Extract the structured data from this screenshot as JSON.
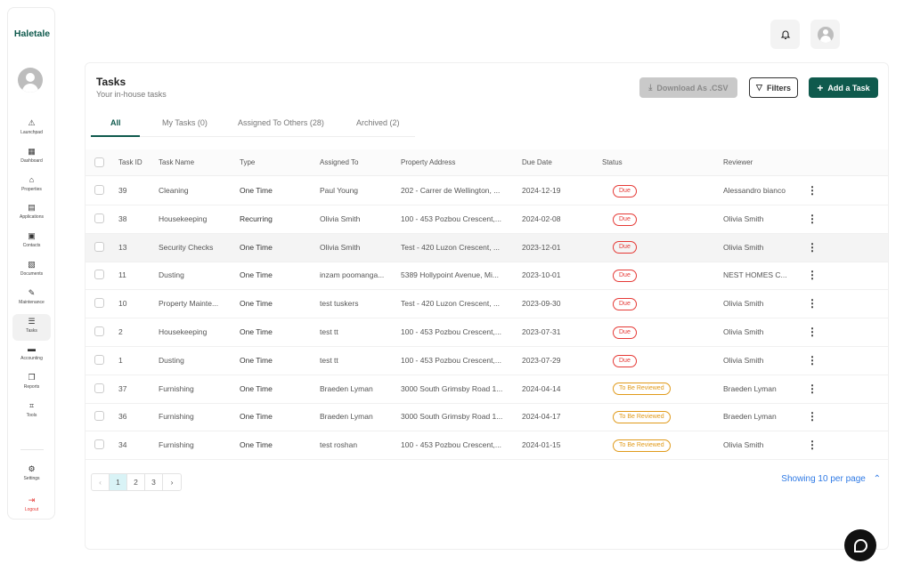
{
  "brand": {
    "name": "Haletale",
    "accent": "#0f5a4d"
  },
  "sidebar": {
    "items": [
      {
        "label": "Launchpad",
        "icon": "launchpad-icon",
        "glyph": "⚠"
      },
      {
        "label": "Dashboard",
        "icon": "dashboard-icon",
        "glyph": "▦"
      },
      {
        "label": "Properties",
        "icon": "home-icon",
        "glyph": "⌂"
      },
      {
        "label": "Applications",
        "icon": "clipboard-icon",
        "glyph": "▤"
      },
      {
        "label": "Contacts",
        "icon": "contacts-icon",
        "glyph": "▣"
      },
      {
        "label": "Documents",
        "icon": "document-icon",
        "glyph": "▧"
      },
      {
        "label": "Maintenance",
        "icon": "wrench-icon",
        "glyph": "✎"
      },
      {
        "label": "Tasks",
        "icon": "tasks-icon",
        "glyph": "☰",
        "active": true
      },
      {
        "label": "Accounting",
        "icon": "accounting-icon",
        "glyph": "▬"
      },
      {
        "label": "Reports",
        "icon": "reports-icon",
        "glyph": "❐"
      },
      {
        "label": "Tools",
        "icon": "tools-icon",
        "glyph": "⌗"
      }
    ],
    "settings": {
      "label": "Settings",
      "glyph": "⚙"
    },
    "logout": {
      "label": "Logout",
      "glyph": "⇥"
    }
  },
  "header": {
    "title": "Tasks",
    "subtitle": "Your in-house tasks",
    "download_label": "Download As .CSV",
    "filters_label": "Filters",
    "add_label": "Add a Task"
  },
  "tabs": [
    {
      "label": "All",
      "active": true
    },
    {
      "label": "My Tasks (0)"
    },
    {
      "label": "Assigned To Others (28)"
    },
    {
      "label": "Archived (2)"
    }
  ],
  "table": {
    "columns": [
      "Task ID",
      "Task Name",
      "Type",
      "Assigned To",
      "Property Address",
      "Due Date",
      "Status",
      "Reviewer"
    ],
    "rows": [
      [
        "39",
        "Cleaning",
        "One Time",
        "Paul Young",
        "202 - Carrer de Wellington, ...",
        "2024-12-19",
        "Due",
        "Alessandro bianco"
      ],
      [
        "38",
        "Housekeeping",
        "Recurring",
        "Olivia Smith",
        "100 - 453 Pozbou Crescent,...",
        "2024-02-08",
        "Due",
        "Olivia Smith"
      ],
      [
        "13",
        "Security Checks",
        "One Time",
        "Olivia Smith",
        "Test - 420 Luzon Crescent, ...",
        "2023-12-01",
        "Due",
        "Olivia Smith"
      ],
      [
        "11",
        "Dusting",
        "One Time",
        "inzam poomanga...",
        "5389 Hollypoint Avenue, Mi...",
        "2023-10-01",
        "Due",
        "NEST HOMES C..."
      ],
      [
        "10",
        "Property Mainte...",
        "One Time",
        "test tuskers",
        "Test - 420 Luzon Crescent, ...",
        "2023-09-30",
        "Due",
        "Olivia Smith"
      ],
      [
        "2",
        "Housekeeping",
        "One Time",
        "test tt",
        "100 - 453 Pozbou Crescent,...",
        "2023-07-31",
        "Due",
        "Olivia Smith"
      ],
      [
        "1",
        "Dusting",
        "One Time",
        "test tt",
        "100 - 453 Pozbou Crescent,...",
        "2023-07-29",
        "Due",
        "Olivia Smith"
      ],
      [
        "37",
        "Furnishing",
        "One Time",
        "Braeden Lyman",
        "3000 South Grimsby Road 1...",
        "2024-04-14",
        "To Be Reviewed",
        "Braeden Lyman"
      ],
      [
        "36",
        "Furnishing",
        "One Time",
        "Braeden Lyman",
        "3000 South Grimsby Road 1...",
        "2024-04-17",
        "To Be Reviewed",
        "Braeden Lyman"
      ],
      [
        "34",
        "Furnishing",
        "One Time",
        "test roshan",
        "100 - 453 Pozbou Crescent,...",
        "2024-01-15",
        "To Be Reviewed",
        "Olivia Smith"
      ]
    ],
    "highlighted_row": 2,
    "status_colors": {
      "Due": "#e53935",
      "To Be Reviewed": "#e09a1a"
    }
  },
  "pagination": {
    "prev": "‹",
    "next": "›",
    "pages": [
      "1",
      "2",
      "3"
    ],
    "current": "1",
    "per_page_label": "Showing 10 per page",
    "chevron": "⌃"
  }
}
